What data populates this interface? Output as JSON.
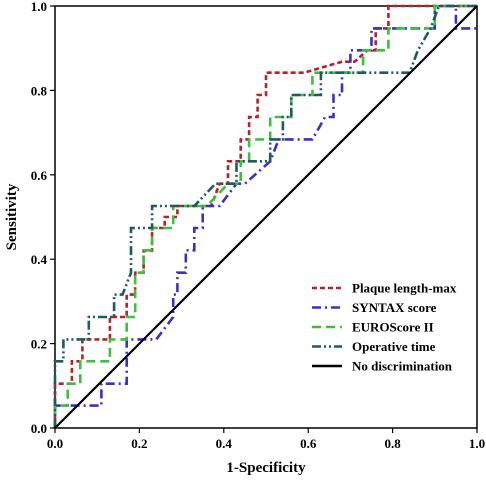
{
  "chart_data": {
    "type": "line",
    "title": "",
    "xlabel": "1-Specificity",
    "ylabel": "Sensitivity",
    "xlim": [
      0,
      1
    ],
    "ylim": [
      0,
      1
    ],
    "x_ticks": [
      "0.0",
      "0.2",
      "0.4",
      "0.6",
      "0.8",
      "1.0"
    ],
    "y_ticks": [
      "0.0",
      "0.2",
      "0.4",
      "0.6",
      "0.8",
      "1.0"
    ],
    "grid": false,
    "legend_position": "bottom-right",
    "series": [
      {
        "name": "Plaque length-max",
        "color": "#b5222a",
        "dash": "dotted",
        "points": [
          [
            0,
            0
          ],
          [
            0,
            0.105
          ],
          [
            0.04,
            0.105
          ],
          [
            0.04,
            0.158
          ],
          [
            0.065,
            0.158
          ],
          [
            0.065,
            0.21
          ],
          [
            0.13,
            0.21
          ],
          [
            0.13,
            0.263
          ],
          [
            0.17,
            0.263
          ],
          [
            0.17,
            0.316
          ],
          [
            0.19,
            0.316
          ],
          [
            0.19,
            0.368
          ],
          [
            0.21,
            0.368
          ],
          [
            0.21,
            0.42
          ],
          [
            0.23,
            0.42
          ],
          [
            0.23,
            0.474
          ],
          [
            0.26,
            0.474
          ],
          [
            0.26,
            0.5
          ],
          [
            0.29,
            0.5
          ],
          [
            0.29,
            0.526
          ],
          [
            0.37,
            0.526
          ],
          [
            0.39,
            0.579
          ],
          [
            0.41,
            0.579
          ],
          [
            0.41,
            0.632
          ],
          [
            0.44,
            0.632
          ],
          [
            0.44,
            0.684
          ],
          [
            0.46,
            0.684
          ],
          [
            0.46,
            0.737
          ],
          [
            0.48,
            0.737
          ],
          [
            0.48,
            0.789
          ],
          [
            0.5,
            0.789
          ],
          [
            0.5,
            0.842
          ],
          [
            0.59,
            0.842
          ],
          [
            0.68,
            0.868
          ],
          [
            0.71,
            0.868
          ],
          [
            0.74,
            0.895
          ],
          [
            0.76,
            0.895
          ],
          [
            0.76,
            0.947
          ],
          [
            0.79,
            0.947
          ],
          [
            0.79,
            1.0
          ],
          [
            1.0,
            1.0
          ]
        ]
      },
      {
        "name": "SYNTAX score",
        "color": "#3b2fc4",
        "dash": "dashdot",
        "points": [
          [
            0,
            0
          ],
          [
            0,
            0.053
          ],
          [
            0.11,
            0.053
          ],
          [
            0.11,
            0.105
          ],
          [
            0.17,
            0.105
          ],
          [
            0.17,
            0.21
          ],
          [
            0.24,
            0.21
          ],
          [
            0.28,
            0.263
          ],
          [
            0.28,
            0.316
          ],
          [
            0.29,
            0.316
          ],
          [
            0.29,
            0.368
          ],
          [
            0.31,
            0.368
          ],
          [
            0.31,
            0.421
          ],
          [
            0.33,
            0.421
          ],
          [
            0.33,
            0.474
          ],
          [
            0.35,
            0.474
          ],
          [
            0.35,
            0.526
          ],
          [
            0.39,
            0.526
          ],
          [
            0.43,
            0.579
          ],
          [
            0.45,
            0.579
          ],
          [
            0.51,
            0.632
          ],
          [
            0.53,
            0.684
          ],
          [
            0.61,
            0.684
          ],
          [
            0.64,
            0.737
          ],
          [
            0.66,
            0.737
          ],
          [
            0.66,
            0.789
          ],
          [
            0.68,
            0.789
          ],
          [
            0.68,
            0.842
          ],
          [
            0.7,
            0.842
          ],
          [
            0.7,
            0.895
          ],
          [
            0.75,
            0.895
          ],
          [
            0.75,
            0.947
          ],
          [
            0.9,
            0.947
          ],
          [
            0.9,
            1.0
          ],
          [
            0.95,
            1.0
          ],
          [
            0.95,
            0.947
          ],
          [
            1.0,
            0.947
          ]
        ]
      },
      {
        "name": "EUROScore II",
        "color": "#3fbf3f",
        "dash": "dashed",
        "points": [
          [
            0,
            0
          ],
          [
            0,
            0.053
          ],
          [
            0.03,
            0.053
          ],
          [
            0.03,
            0.105
          ],
          [
            0.06,
            0.105
          ],
          [
            0.06,
            0.158
          ],
          [
            0.13,
            0.158
          ],
          [
            0.13,
            0.21
          ],
          [
            0.17,
            0.21
          ],
          [
            0.17,
            0.263
          ],
          [
            0.19,
            0.263
          ],
          [
            0.19,
            0.368
          ],
          [
            0.21,
            0.368
          ],
          [
            0.21,
            0.421
          ],
          [
            0.23,
            0.421
          ],
          [
            0.23,
            0.474
          ],
          [
            0.28,
            0.474
          ],
          [
            0.28,
            0.526
          ],
          [
            0.36,
            0.526
          ],
          [
            0.41,
            0.579
          ],
          [
            0.44,
            0.579
          ],
          [
            0.44,
            0.632
          ],
          [
            0.46,
            0.632
          ],
          [
            0.46,
            0.684
          ],
          [
            0.51,
            0.684
          ],
          [
            0.51,
            0.737
          ],
          [
            0.56,
            0.737
          ],
          [
            0.56,
            0.789
          ],
          [
            0.61,
            0.789
          ],
          [
            0.61,
            0.842
          ],
          [
            0.73,
            0.842
          ],
          [
            0.73,
            0.895
          ],
          [
            0.79,
            0.895
          ],
          [
            0.79,
            0.947
          ],
          [
            0.86,
            0.947
          ],
          [
            0.9,
            0.947
          ],
          [
            0.9,
            1.0
          ],
          [
            1.0,
            1.0
          ]
        ]
      },
      {
        "name": "Operative time",
        "color": "#1f5a5e",
        "dash": "dashdotdot",
        "points": [
          [
            0,
            0
          ],
          [
            0,
            0.158
          ],
          [
            0.02,
            0.158
          ],
          [
            0.02,
            0.21
          ],
          [
            0.08,
            0.21
          ],
          [
            0.08,
            0.263
          ],
          [
            0.14,
            0.263
          ],
          [
            0.14,
            0.316
          ],
          [
            0.16,
            0.316
          ],
          [
            0.18,
            0.368
          ],
          [
            0.18,
            0.474
          ],
          [
            0.23,
            0.474
          ],
          [
            0.23,
            0.526
          ],
          [
            0.33,
            0.526
          ],
          [
            0.38,
            0.579
          ],
          [
            0.43,
            0.579
          ],
          [
            0.43,
            0.632
          ],
          [
            0.51,
            0.632
          ],
          [
            0.51,
            0.684
          ],
          [
            0.54,
            0.684
          ],
          [
            0.54,
            0.737
          ],
          [
            0.56,
            0.737
          ],
          [
            0.56,
            0.789
          ],
          [
            0.63,
            0.789
          ],
          [
            0.63,
            0.842
          ],
          [
            0.84,
            0.842
          ],
          [
            0.86,
            0.895
          ],
          [
            0.89,
            0.947
          ],
          [
            0.91,
            1.0
          ],
          [
            1.0,
            1.0
          ]
        ]
      },
      {
        "name": "No discrimination",
        "color": "#000000",
        "dash": "solid",
        "points": [
          [
            0,
            0
          ],
          [
            1,
            1
          ]
        ]
      }
    ]
  }
}
